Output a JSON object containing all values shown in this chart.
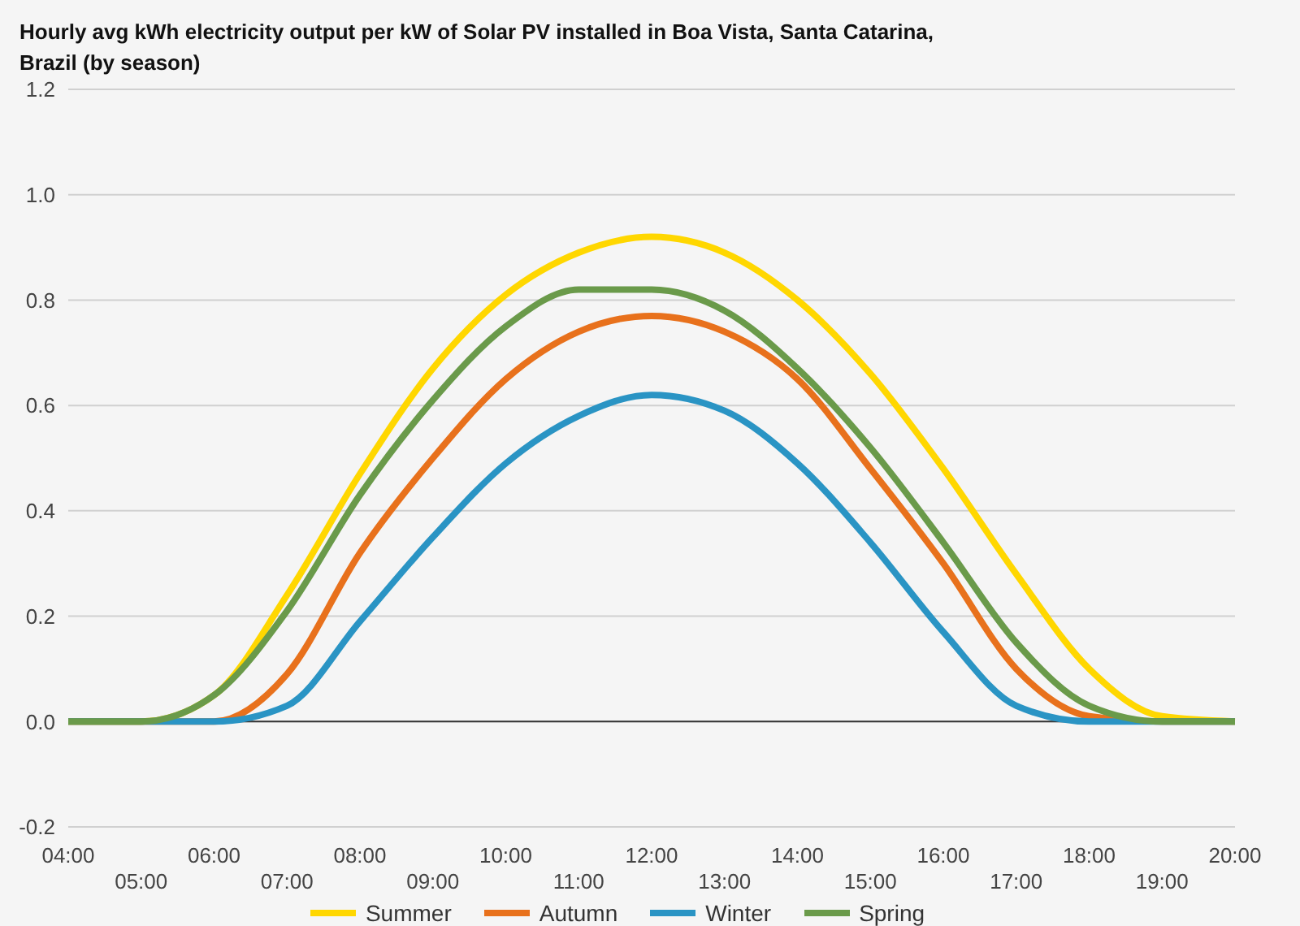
{
  "chart_data": {
    "type": "line",
    "title": "Hourly avg kWh electricity output per kW of Solar PV installed in Boa Vista, Santa Catarina, Brazil (by season)",
    "categories": [
      "04:00",
      "05:00",
      "06:00",
      "07:00",
      "08:00",
      "09:00",
      "10:00",
      "11:00",
      "12:00",
      "13:00",
      "14:00",
      "15:00",
      "16:00",
      "17:00",
      "18:00",
      "19:00",
      "20:00"
    ],
    "series": [
      {
        "name": "Summer",
        "color": "#ffd700",
        "values": [
          0,
          0,
          0.05,
          0.24,
          0.47,
          0.67,
          0.81,
          0.89,
          0.92,
          0.89,
          0.8,
          0.66,
          0.48,
          0.28,
          0.1,
          0.01,
          0
        ]
      },
      {
        "name": "Autumn",
        "color": "#e8711c",
        "values": [
          0,
          0,
          0,
          0.09,
          0.32,
          0.5,
          0.65,
          0.74,
          0.77,
          0.74,
          0.65,
          0.48,
          0.3,
          0.1,
          0.01,
          0,
          0
        ]
      },
      {
        "name": "Winter",
        "color": "#2a94c4",
        "values": [
          0,
          0,
          0,
          0.03,
          0.19,
          0.35,
          0.49,
          0.58,
          0.62,
          0.59,
          0.49,
          0.34,
          0.17,
          0.03,
          0,
          0,
          0
        ]
      },
      {
        "name": "Spring",
        "color": "#6a9a4a",
        "values": [
          0,
          0,
          0.05,
          0.21,
          0.43,
          0.61,
          0.75,
          0.82,
          0.82,
          0.78,
          0.67,
          0.52,
          0.34,
          0.15,
          0.03,
          0,
          0
        ]
      }
    ],
    "ylim": [
      -0.2,
      1.2
    ],
    "yticks": [
      -0.2,
      {
        "value": 0,
        "label": "0.0"
      },
      0.2,
      0.4,
      0.6,
      0.8,
      {
        "value": 1,
        "label": "1.0"
      },
      1.2
    ],
    "grid": "y",
    "legend": "bottom",
    "marker": "none",
    "line_style": "solid"
  }
}
